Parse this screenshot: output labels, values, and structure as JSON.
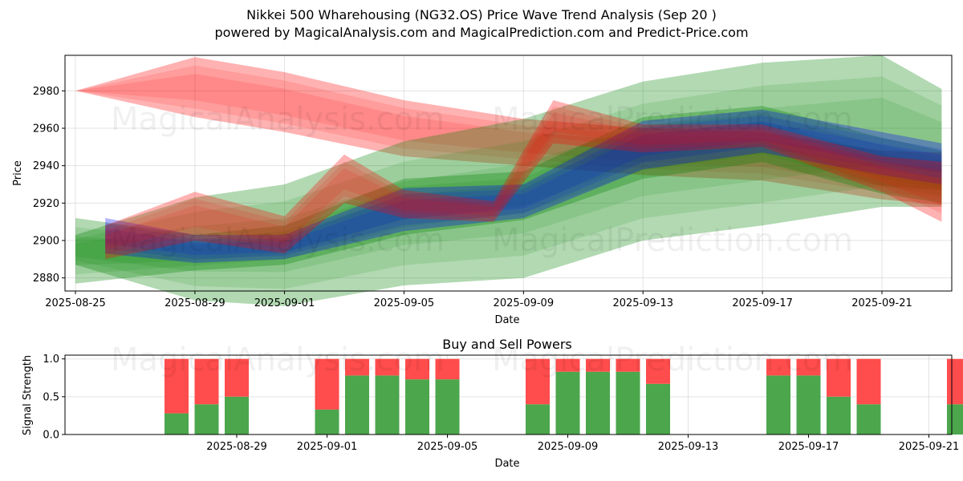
{
  "title_line1": "Nikkei 500 Wharehousing (NG32.OS) Price Wave Trend Analysis (Sep 20 )",
  "title_line2": "powered by MagicalAnalysis.com and MagicalPrediction.com and Predict-Price.com",
  "watermarks": {
    "left": "MagicalAnalysis.com",
    "right": "MagicalPrediction.com"
  },
  "chart_data": [
    {
      "type": "area",
      "title": "",
      "xlabel": "Date",
      "ylabel": "Price",
      "x_tick_labels": [
        "2025-08-25",
        "2025-08-29",
        "2025-09-01",
        "2025-09-05",
        "2025-09-09",
        "2025-09-13",
        "2025-09-17",
        "2025-09-21"
      ],
      "y_ticks": [
        2880,
        2900,
        2920,
        2940,
        2960,
        2980
      ],
      "ylim": [
        2873,
        2999
      ],
      "grid": true,
      "colors": {
        "red": "#ff0000",
        "green": "#008000",
        "blue": "#0000ff"
      },
      "series": [
        {
          "color": "red",
          "x": [
            "2025-08-25",
            "2025-08-29",
            "2025-09-01",
            "2025-09-05",
            "2025-09-09",
            "2025-09-13",
            "2025-09-17",
            "2025-09-21",
            "2025-09-23"
          ],
          "upper": [
            2980,
            2998,
            2990,
            2975,
            2965,
            2960,
            2958,
            2948,
            2947
          ],
          "lower": [
            2980,
            2966,
            2958,
            2945,
            2940,
            2935,
            2932,
            2922,
            2919
          ]
        },
        {
          "color": "green",
          "x": [
            "2025-08-25",
            "2025-08-29",
            "2025-09-01",
            "2025-09-05",
            "2025-09-09",
            "2025-09-13",
            "2025-09-17",
            "2025-09-21",
            "2025-09-23"
          ],
          "upper": [
            2903,
            2923,
            2930,
            2953,
            2965,
            2985,
            2995,
            2999,
            2981
          ],
          "lower": [
            2887,
            2868,
            2865,
            2876,
            2880,
            2900,
            2908,
            2918,
            2918
          ]
        },
        {
          "color": "green",
          "x": [
            "2025-08-25",
            "2025-08-29",
            "2025-09-01",
            "2025-09-05",
            "2025-09-09",
            "2025-09-13",
            "2025-09-17",
            "2025-09-21",
            "2025-09-23"
          ],
          "upper": [
            2912,
            2903,
            2908,
            2933,
            2937,
            2966,
            2972,
            2955,
            2948
          ],
          "lower": [
            2877,
            2884,
            2887,
            2903,
            2911,
            2933,
            2942,
            2925,
            2920
          ]
        },
        {
          "color": "blue",
          "x": [
            "2025-08-26",
            "2025-08-29",
            "2025-09-01",
            "2025-09-05",
            "2025-09-09",
            "2025-09-13",
            "2025-09-17",
            "2025-09-21",
            "2025-09-23"
          ],
          "upper": [
            2912,
            2903,
            2903,
            2928,
            2930,
            2964,
            2970,
            2958,
            2952
          ],
          "lower": [
            2893,
            2888,
            2890,
            2905,
            2912,
            2938,
            2947,
            2935,
            2930
          ]
        },
        {
          "color": "red",
          "x": [
            "2025-08-26",
            "2025-08-29",
            "2025-09-01",
            "2025-09-03",
            "2025-09-05",
            "2025-09-08",
            "2025-09-10",
            "2025-09-13",
            "2025-09-17",
            "2025-09-21",
            "2025-09-23"
          ],
          "upper": [
            2908,
            2926,
            2913,
            2946,
            2927,
            2921,
            2975,
            2962,
            2962,
            2945,
            2942
          ],
          "lower": [
            2890,
            2900,
            2893,
            2920,
            2912,
            2910,
            2952,
            2947,
            2950,
            2926,
            2910
          ]
        }
      ]
    },
    {
      "type": "bar",
      "title": "Buy and Sell Powers",
      "xlabel": "Date",
      "ylabel": "Signal Strength",
      "x_tick_labels": [
        "2025-08-29",
        "2025-09-01",
        "2025-09-05",
        "2025-09-09",
        "2025-09-13",
        "2025-09-17",
        "2025-09-21"
      ],
      "y_ticks": [
        0.0,
        0.5,
        1.0
      ],
      "ylim": [
        0,
        1.05
      ],
      "grid": true,
      "colors": {
        "buy": "#4ca64c",
        "sell": "#ff4c4c"
      },
      "categories": [
        "2025-08-27",
        "2025-08-28",
        "2025-08-29",
        "2025-09-01",
        "2025-09-02",
        "2025-09-03",
        "2025-09-04",
        "2025-09-05",
        "2025-09-08",
        "2025-09-09",
        "2025-09-10",
        "2025-09-11",
        "2025-09-12",
        "2025-09-16",
        "2025-09-17",
        "2025-09-18",
        "2025-09-19",
        "2025-09-22"
      ],
      "series": [
        {
          "values": [
            0.28,
            0.4,
            0.5,
            0.33,
            0.78,
            0.78,
            0.73,
            0.73,
            0.4,
            0.83,
            0.83,
            0.83,
            0.67,
            0.78,
            0.78,
            0.5,
            0.4,
            0.4
          ]
        },
        {
          "values": [
            0.72,
            0.6,
            0.5,
            0.67,
            0.22,
            0.22,
            0.27,
            0.27,
            0.6,
            0.17,
            0.17,
            0.17,
            0.33,
            0.22,
            0.22,
            0.5,
            0.6,
            0.6
          ]
        }
      ]
    }
  ]
}
